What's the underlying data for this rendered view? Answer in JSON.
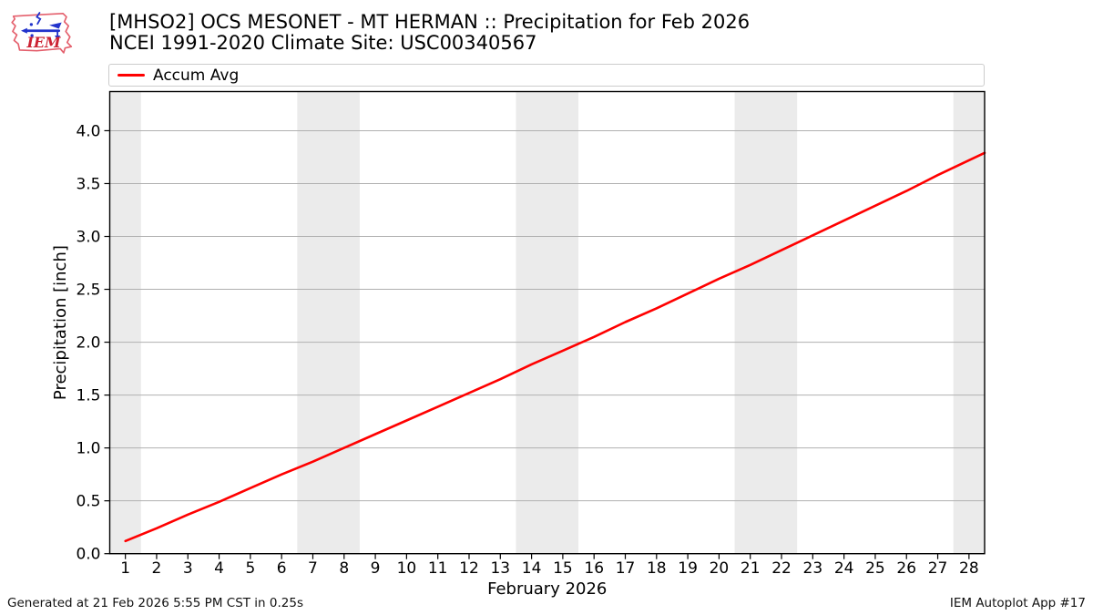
{
  "header": {
    "title_line1": "[MHSO2] OCS MESONET - MT HERMAN :: Precipitation for Feb 2026",
    "title_line2": "NCEI 1991-2020 Climate Site: USC00340567",
    "logo_text": "IEM",
    "logo_outline_color": "#e4606d",
    "logo_text_color": "#cc2233",
    "logo_instrument_color": "#2233cc"
  },
  "legend": {
    "items": [
      {
        "label": "Accum Avg",
        "color": "#ff0000"
      }
    ]
  },
  "chart_data": {
    "type": "line",
    "title": "[MHSO2] OCS MESONET - MT HERMAN :: Precipitation for Feb 2026",
    "subtitle": "NCEI 1991-2020 Climate Site: USC00340567",
    "xlabel": "February 2026",
    "ylabel": "Precipitation [inch]",
    "xlim": [
      0.5,
      28.5
    ],
    "ylim": [
      0,
      4.37
    ],
    "x_ticks": [
      1,
      2,
      3,
      4,
      5,
      6,
      7,
      8,
      9,
      10,
      11,
      12,
      13,
      14,
      15,
      16,
      17,
      18,
      19,
      20,
      21,
      22,
      23,
      24,
      25,
      26,
      27,
      28
    ],
    "y_ticks": [
      0.0,
      0.5,
      1.0,
      1.5,
      2.0,
      2.5,
      3.0,
      3.5,
      4.0
    ],
    "grid": "horizontal",
    "grid_color": "#b0b0b0",
    "legend_position": "top",
    "weekend_bands": [
      [
        0.5,
        1.5
      ],
      [
        6.5,
        8.5
      ],
      [
        13.5,
        15.5
      ],
      [
        20.5,
        22.5
      ],
      [
        27.5,
        28.5
      ]
    ],
    "band_color": "#ebebeb",
    "series": [
      {
        "name": "Accum Avg",
        "color": "#ff0000",
        "x": [
          1,
          2,
          3,
          4,
          5,
          6,
          7,
          8,
          9,
          10,
          11,
          12,
          13,
          14,
          15,
          16,
          17,
          18,
          19,
          20,
          21,
          22,
          23,
          24,
          25,
          26,
          27,
          28,
          28.5
        ],
        "values": [
          0.12,
          0.24,
          0.37,
          0.49,
          0.62,
          0.75,
          0.87,
          1.0,
          1.13,
          1.26,
          1.39,
          1.52,
          1.65,
          1.79,
          1.92,
          2.05,
          2.19,
          2.32,
          2.46,
          2.6,
          2.73,
          2.87,
          3.01,
          3.15,
          3.29,
          3.43,
          3.58,
          3.72,
          3.79
        ]
      }
    ]
  },
  "footer": {
    "left": "Generated at 21 Feb 2026 5:55 PM CST in 0.25s",
    "right": "IEM Autoplot App #17"
  }
}
